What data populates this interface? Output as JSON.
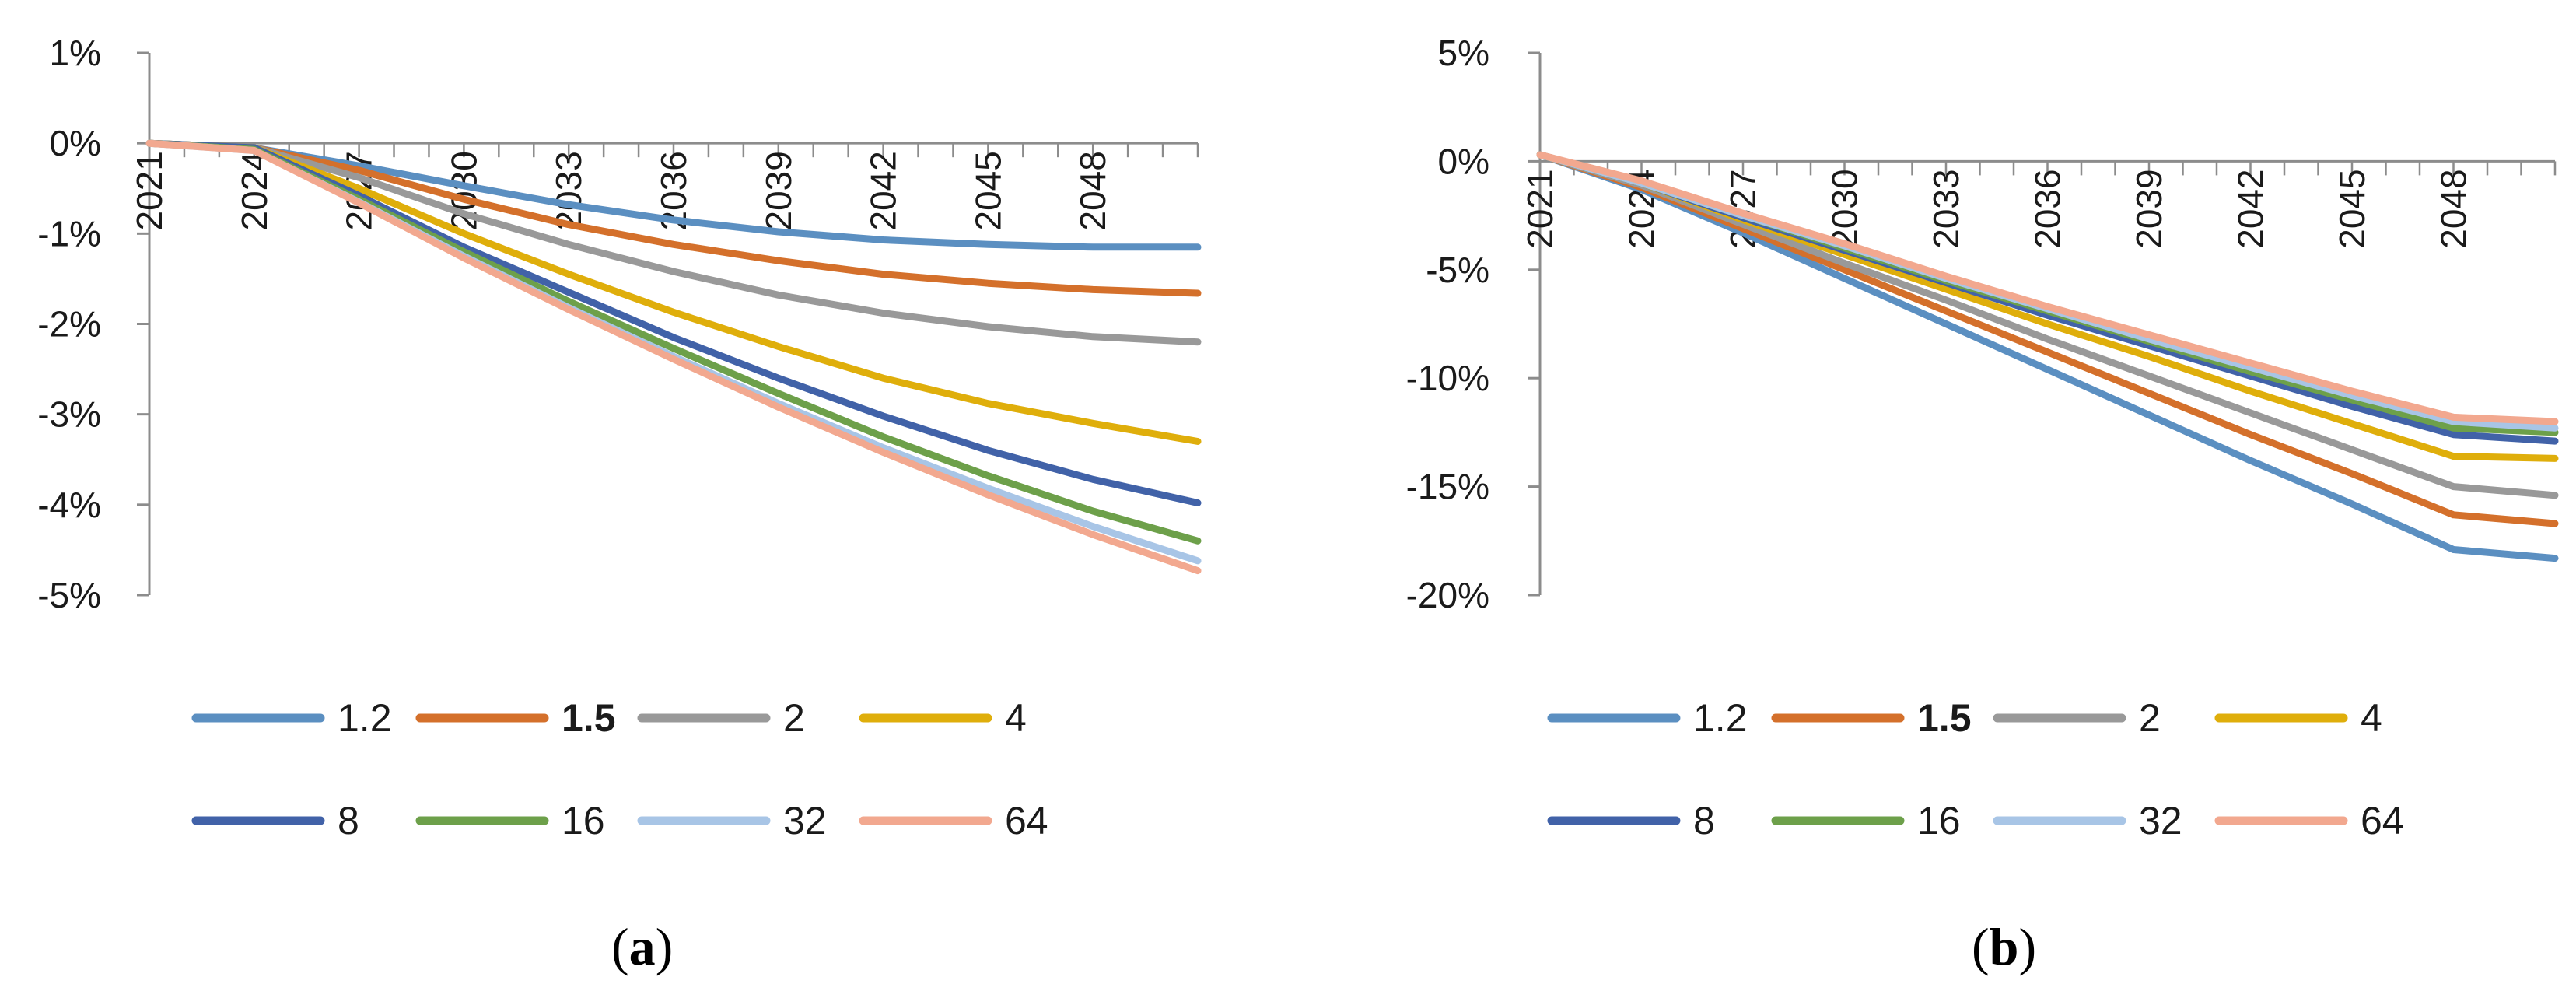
{
  "colors": {
    "1.2": "#5b8fc1",
    "1.5": "#d4702b",
    "2": "#999999",
    "4": "#dfae0b",
    "8": "#4162a8",
    "16": "#6da04a",
    "32": "#a8c5e6",
    "64": "#f2a88f"
  },
  "chart_data": [
    {
      "type": "line",
      "panel": "(a)",
      "panel_letter": "a",
      "xlabel": "",
      "ylabel": "",
      "x": [
        2021,
        2024,
        2027,
        2030,
        2033,
        2036,
        2039,
        2042,
        2045,
        2048,
        2051
      ],
      "x_tick_labels": [
        "2021",
        "2024",
        "2027",
        "2030",
        "2033",
        "2036",
        "2039",
        "2042",
        "2045",
        "2048"
      ],
      "y_ticks": [
        1,
        0,
        -1,
        -2,
        -3,
        -4,
        -5
      ],
      "y_tick_labels": [
        "1%",
        "0%",
        "-1%",
        "-2%",
        "-3%",
        "-4%",
        "-5%"
      ],
      "ylim": [
        -5,
        1
      ],
      "xlim": [
        2021,
        2051
      ],
      "legend_position": "bottom",
      "series": [
        {
          "name": "1.2",
          "bold": false,
          "values": [
            0,
            -0.05,
            -0.25,
            -0.47,
            -0.68,
            -0.85,
            -0.98,
            -1.07,
            -1.12,
            -1.15,
            -1.15
          ]
        },
        {
          "name": "1.5",
          "bold": true,
          "values": [
            0,
            -0.05,
            -0.3,
            -0.62,
            -0.9,
            -1.12,
            -1.3,
            -1.45,
            -1.55,
            -1.62,
            -1.66
          ]
        },
        {
          "name": "2",
          "bold": false,
          "values": [
            0,
            -0.05,
            -0.38,
            -0.78,
            -1.12,
            -1.42,
            -1.68,
            -1.88,
            -2.03,
            -2.14,
            -2.2
          ]
        },
        {
          "name": "4",
          "bold": false,
          "values": [
            0,
            -0.05,
            -0.5,
            -1.0,
            -1.45,
            -1.87,
            -2.25,
            -2.6,
            -2.88,
            -3.1,
            -3.3
          ]
        },
        {
          "name": "8",
          "bold": false,
          "values": [
            0,
            -0.05,
            -0.58,
            -1.15,
            -1.65,
            -2.15,
            -2.6,
            -3.02,
            -3.4,
            -3.72,
            -3.98
          ]
        },
        {
          "name": "16",
          "bold": false,
          "values": [
            0,
            -0.07,
            -0.62,
            -1.2,
            -1.75,
            -2.27,
            -2.77,
            -3.25,
            -3.68,
            -4.07,
            -4.4
          ]
        },
        {
          "name": "32",
          "bold": false,
          "values": [
            0,
            -0.08,
            -0.65,
            -1.25,
            -1.82,
            -2.36,
            -2.88,
            -3.37,
            -3.82,
            -4.24,
            -4.62
          ]
        },
        {
          "name": "64",
          "bold": false,
          "values": [
            0,
            -0.08,
            -0.66,
            -1.27,
            -1.84,
            -2.39,
            -2.92,
            -3.42,
            -3.89,
            -4.33,
            -4.73
          ]
        }
      ]
    },
    {
      "type": "line",
      "panel": "(b)",
      "panel_letter": "b",
      "xlabel": "",
      "ylabel": "",
      "x": [
        2021,
        2024,
        2027,
        2030,
        2033,
        2036,
        2039,
        2042,
        2045,
        2048,
        2051
      ],
      "x_tick_labels": [
        "2021",
        "2024",
        "2027",
        "2030",
        "2033",
        "2036",
        "2039",
        "2042",
        "2045",
        "2048"
      ],
      "y_ticks": [
        5,
        0,
        -5,
        -10,
        -15,
        -20
      ],
      "y_tick_labels": [
        "5%",
        "0%",
        "-5%",
        "-10%",
        "-15%",
        "-20%"
      ],
      "ylim": [
        -20,
        5
      ],
      "xlim": [
        2021,
        2051
      ],
      "legend_position": "bottom",
      "series": [
        {
          "name": "1.2",
          "bold": false,
          "values": [
            0.3,
            -1.3,
            -3.3,
            -5.4,
            -7.5,
            -9.6,
            -11.7,
            -13.8,
            -15.8,
            -17.9,
            -18.3
          ]
        },
        {
          "name": "1.5",
          "bold": true,
          "values": [
            0.3,
            -1.2,
            -3.1,
            -5.0,
            -6.9,
            -8.8,
            -10.7,
            -12.6,
            -14.4,
            -16.3,
            -16.7
          ]
        },
        {
          "name": "2",
          "bold": false,
          "values": [
            0.3,
            -1.1,
            -2.9,
            -4.7,
            -6.4,
            -8.2,
            -9.9,
            -11.6,
            -13.3,
            -15.0,
            -15.4
          ]
        },
        {
          "name": "4",
          "bold": false,
          "values": [
            0.3,
            -1.0,
            -2.7,
            -4.3,
            -5.9,
            -7.5,
            -9.0,
            -10.6,
            -12.1,
            -13.6,
            -13.7
          ]
        },
        {
          "name": "8",
          "bold": false,
          "values": [
            0.3,
            -1.0,
            -2.6,
            -4.1,
            -5.6,
            -7.1,
            -8.5,
            -9.9,
            -11.3,
            -12.6,
            -12.9
          ]
        },
        {
          "name": "16",
          "bold": false,
          "values": [
            0.3,
            -1.0,
            -2.5,
            -4.0,
            -5.5,
            -6.9,
            -8.3,
            -9.7,
            -11.0,
            -12.3,
            -12.5
          ]
        },
        {
          "name": "32",
          "bold": false,
          "values": [
            0.3,
            -1.0,
            -2.5,
            -3.9,
            -5.4,
            -6.8,
            -8.2,
            -9.5,
            -10.8,
            -12.0,
            -12.3
          ]
        },
        {
          "name": "64",
          "bold": false,
          "values": [
            0.3,
            -0.9,
            -2.4,
            -3.8,
            -5.3,
            -6.7,
            -8.0,
            -9.3,
            -10.6,
            -11.8,
            -12.0
          ]
        }
      ]
    }
  ]
}
